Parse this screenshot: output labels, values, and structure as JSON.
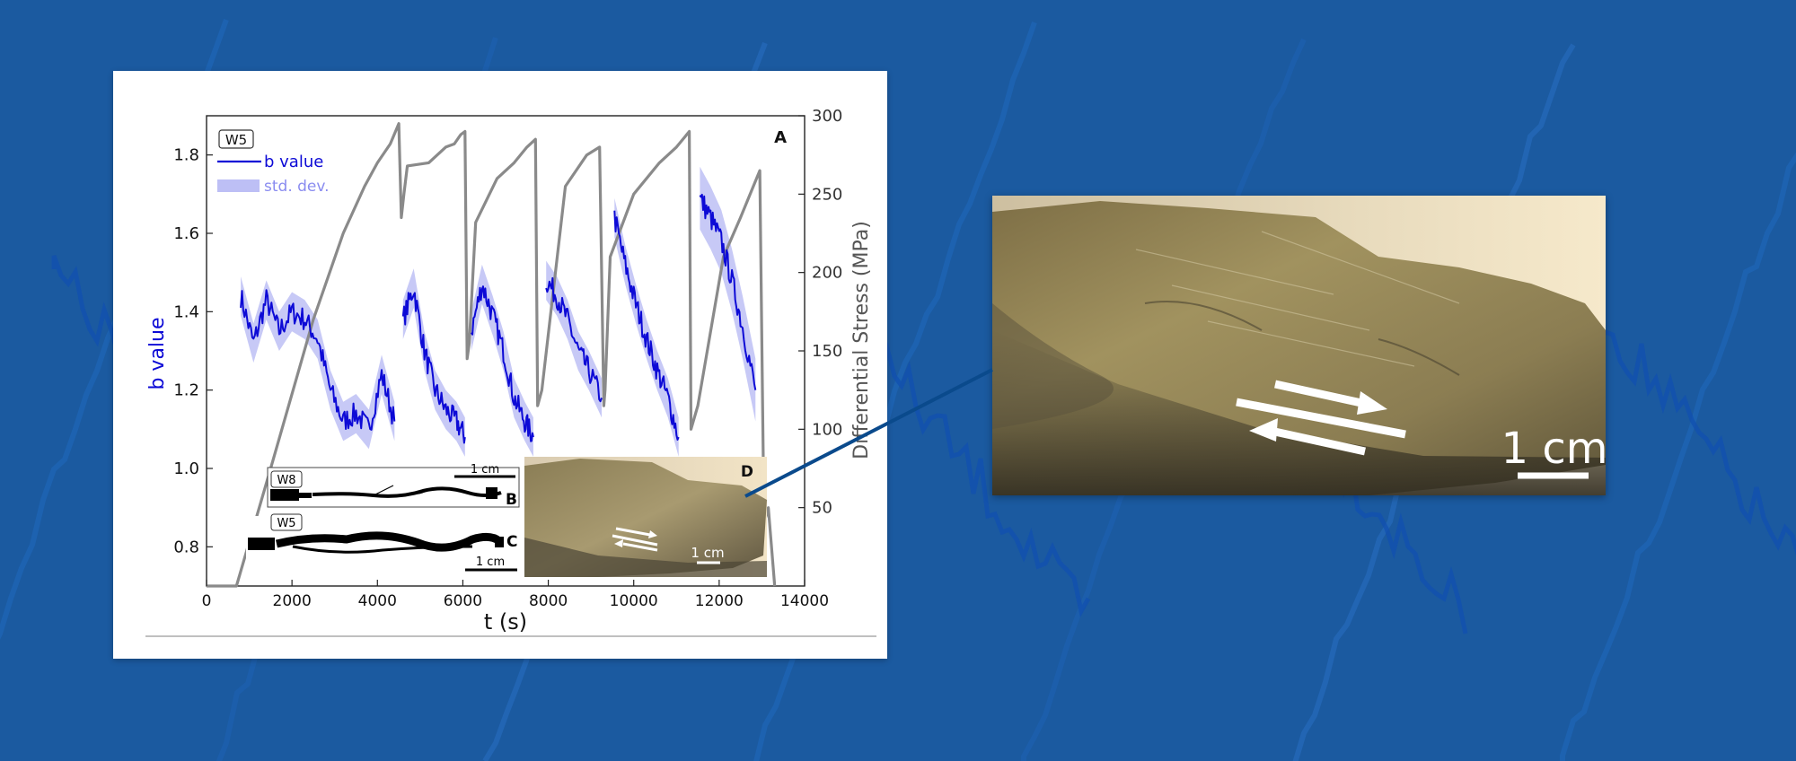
{
  "colors": {
    "background": "#1b5aa0",
    "b_value": "#0d0ad6",
    "std_band": "#bdbff5",
    "stress": "#8a8a8a",
    "connector": "#0a4a8c"
  },
  "icons": {
    "arrow": "double-shear-arrow-icon"
  },
  "chart_data": [
    {
      "type": "line",
      "panel_label": "A",
      "sample_tag": "W5",
      "xlabel": "t (s)",
      "ylabel_left": "b value",
      "ylabel_right": "Differential Stress (MPa)",
      "xlim": [
        0,
        14000
      ],
      "ylim_left": [
        0.7,
        1.9
      ],
      "ylim_right": [
        0,
        300
      ],
      "x_ticks": [
        "0",
        "2000",
        "4000",
        "6000",
        "8000",
        "10000",
        "12000",
        "14000"
      ],
      "y_ticks_left": [
        "0.8",
        "1.0",
        "1.2",
        "1.4",
        "1.6",
        "1.8"
      ],
      "y_ticks_right": [
        "50",
        "100",
        "150",
        "200",
        "250",
        "300"
      ],
      "legend": {
        "placement": "top-left",
        "b_value_label": "b value",
        "std_label": "std. dev."
      },
      "series": [
        {
          "name": "b value",
          "axis": "left",
          "segments": [
            {
              "x": [
                800,
                1100,
                1400,
                1700,
                2000,
                2300,
                2600,
                2900,
                3200,
                3500,
                3800,
                4100,
                4400
              ],
              "y": [
                1.44,
                1.32,
                1.43,
                1.35,
                1.4,
                1.38,
                1.33,
                1.2,
                1.12,
                1.14,
                1.1,
                1.24,
                1.12
              ]
            },
            {
              "x": [
                4600,
                4850,
                5100,
                5350,
                5600,
                5850,
                6050
              ],
              "y": [
                1.38,
                1.46,
                1.3,
                1.2,
                1.15,
                1.12,
                1.08
              ]
            },
            {
              "x": [
                6200,
                6450,
                6700,
                6950,
                7200,
                7450,
                7650
              ],
              "y": [
                1.35,
                1.47,
                1.39,
                1.3,
                1.18,
                1.12,
                1.08
              ]
            },
            {
              "x": [
                7950,
                8200,
                8450,
                8700,
                8950,
                9250
              ],
              "y": [
                1.48,
                1.44,
                1.38,
                1.3,
                1.25,
                1.18
              ]
            },
            {
              "x": [
                9550,
                9800,
                10050,
                10300,
                10550,
                10800,
                11050
              ],
              "y": [
                1.64,
                1.52,
                1.42,
                1.33,
                1.25,
                1.18,
                1.08
              ]
            },
            {
              "x": [
                11550,
                11800,
                12050,
                12300,
                12550,
                12850
              ],
              "y": [
                1.69,
                1.64,
                1.58,
                1.48,
                1.36,
                1.2
              ]
            }
          ]
        },
        {
          "name": "Differential Stress",
          "axis": "right",
          "x": [
            0,
            700,
            1500,
            2500,
            3200,
            3700,
            4000,
            4300,
            4500,
            4560,
            4620,
            4700,
            5200,
            5600,
            5800,
            5950,
            6050,
            6100,
            6150,
            6300,
            6800,
            7200,
            7500,
            7700,
            7750,
            7850,
            8400,
            8900,
            9200,
            9300,
            9330,
            9450,
            10000,
            10600,
            11000,
            11300,
            11340,
            11500,
            12100,
            12500,
            12800,
            12950,
            13050,
            13150,
            13300
          ],
          "y": [
            0,
            0,
            75,
            170,
            225,
            255,
            270,
            282,
            295,
            235,
            250,
            268,
            270,
            280,
            282,
            288,
            290,
            145,
            155,
            232,
            260,
            270,
            280,
            285,
            115,
            125,
            255,
            275,
            280,
            115,
            125,
            210,
            250,
            270,
            280,
            290,
            100,
            115,
            210,
            235,
            255,
            265,
            40,
            50,
            0
          ]
        }
      ],
      "std_band": {
        "x": [
          800,
          2000,
          3500,
          4400,
          5600,
          7200,
          8950,
          10550,
          11800,
          12550
        ],
        "half_width": [
          0.05,
          0.04,
          0.05,
          0.05,
          0.04,
          0.05,
          0.04,
          0.05,
          0.08,
          0.06
        ]
      }
    },
    {
      "type": "image",
      "panel_label": "B",
      "sample_tag": "W8",
      "scale_bar": "1 cm"
    },
    {
      "type": "image",
      "panel_label": "C",
      "sample_tag": "W5",
      "scale_bar": "1 cm"
    },
    {
      "type": "image",
      "panel_label": "D",
      "scale_bar": "1 cm"
    }
  ],
  "zoom_image": {
    "scale_bar": "1 cm"
  }
}
